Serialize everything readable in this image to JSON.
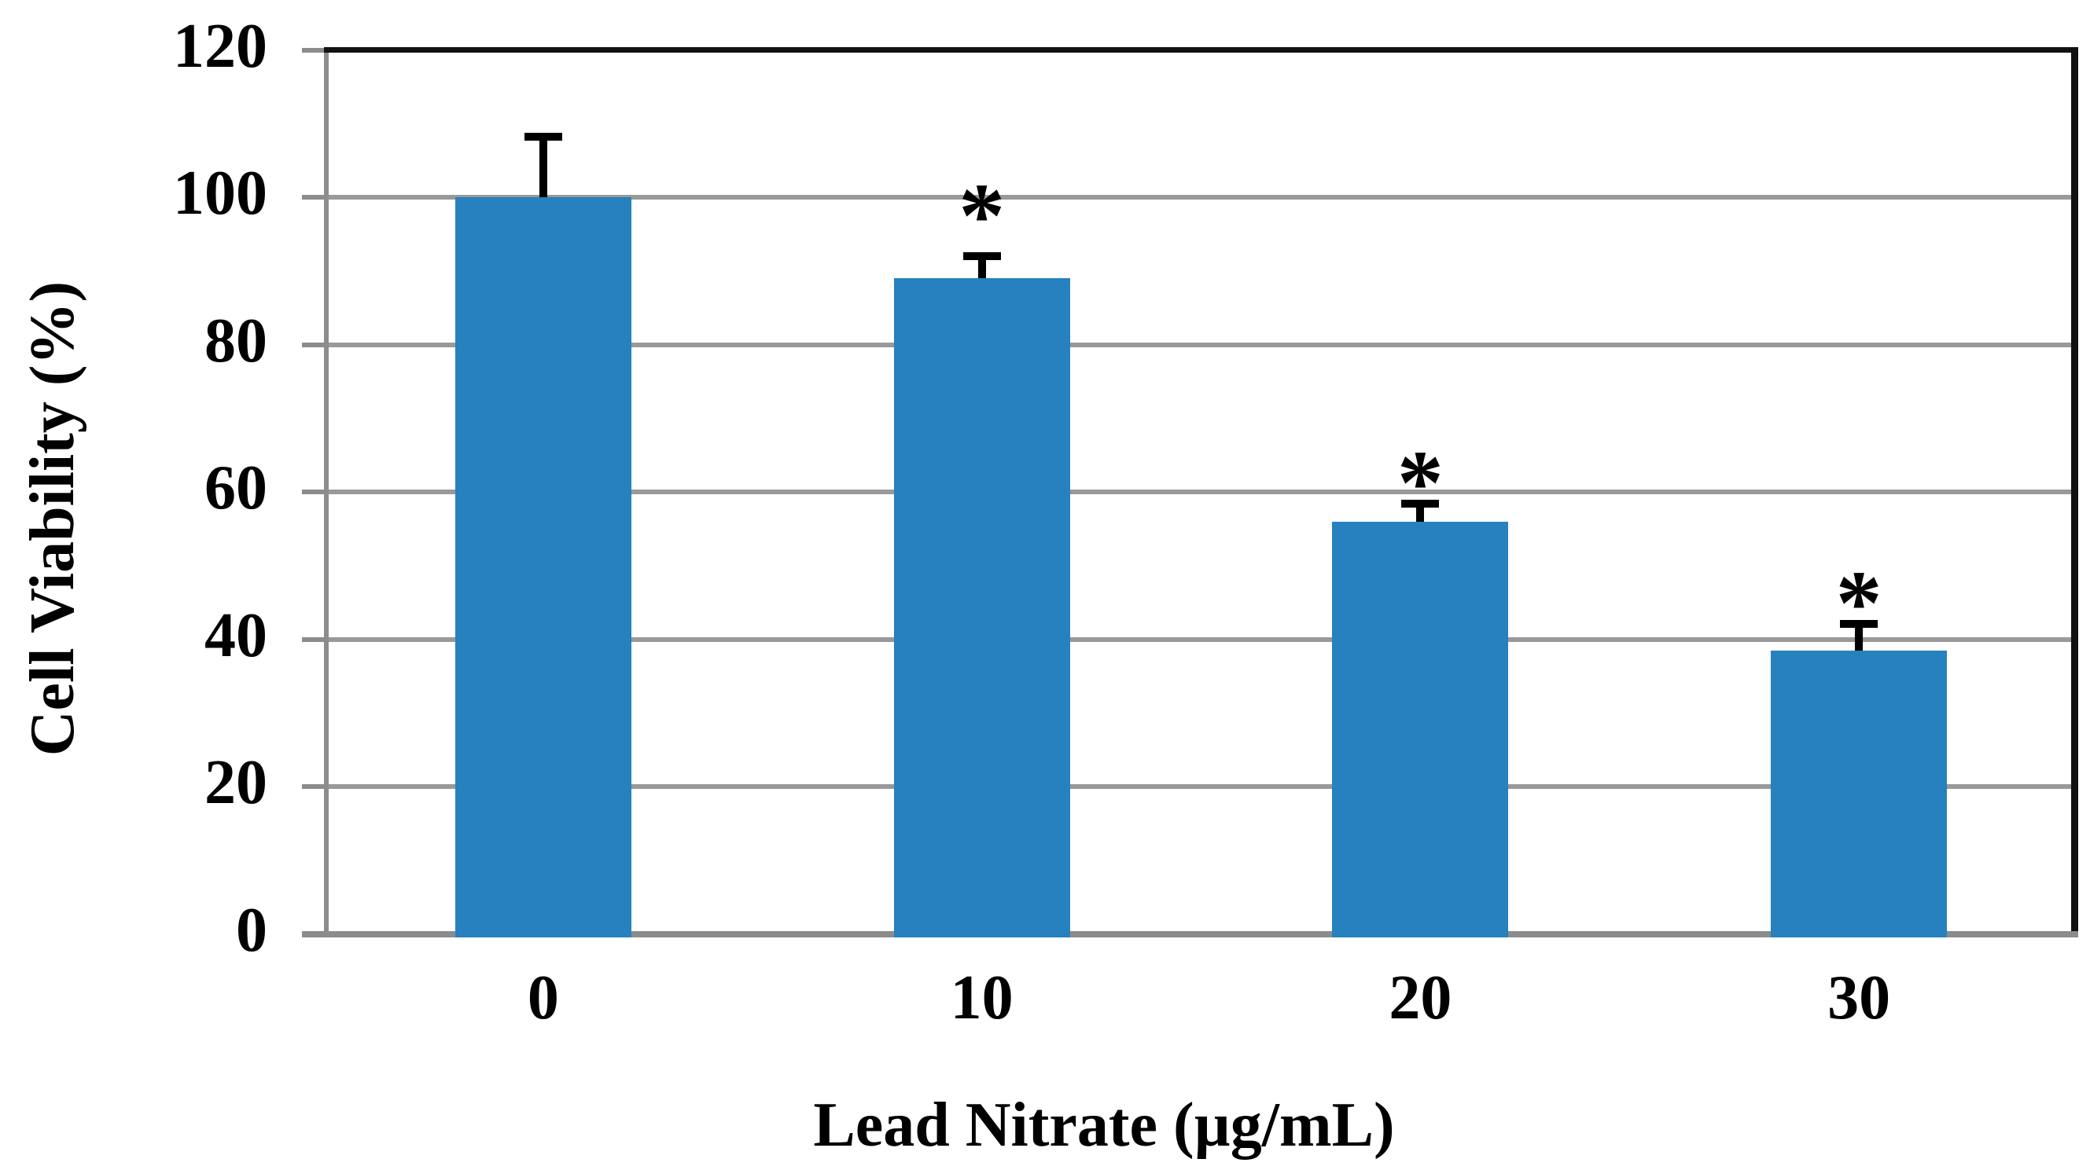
{
  "chart_data": {
    "type": "bar",
    "title": "",
    "categories": [
      "0",
      "10",
      "20",
      "30"
    ],
    "values": [
      100,
      89,
      56,
      38.5
    ],
    "errors_plus": [
      8.8,
      3.6,
      3.0,
      4.2
    ],
    "significance": [
      null,
      "*",
      "*",
      "*"
    ],
    "sig_marker_y": [
      null,
      98.4,
      62.2,
      45.9
    ],
    "xlabel": "Lead Nitrate (µg/mL)",
    "ylabel": "Cell Viability (%)",
    "ylim": [
      0,
      120
    ],
    "ytick_step": 20,
    "ytick_labels": [
      "0",
      "20",
      "40",
      "60",
      "80",
      "100",
      "120"
    ],
    "grid": "horizontal-only",
    "legend": "none",
    "colors": {
      "bar": "#2681BE",
      "gridline": "#999999",
      "axis": "#8C8C8C",
      "plot_border": "#111111",
      "error_bar": "#000000",
      "text": "#000000"
    }
  }
}
